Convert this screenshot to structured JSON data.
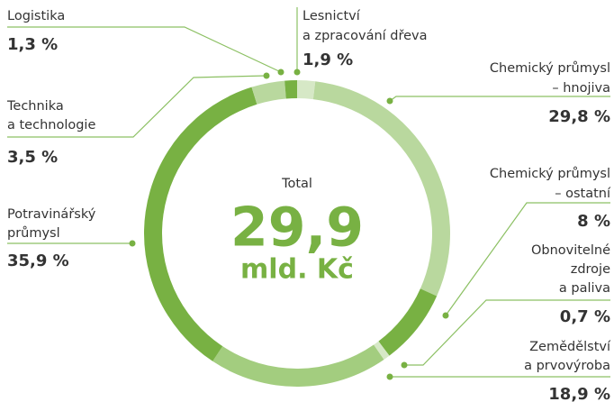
{
  "chart_data": {
    "type": "donut",
    "categories": [
      [
        "Lesnictví",
        "a zpracování dřeva"
      ],
      [
        "Chemický průmysl",
        "– hnojiva"
      ],
      [
        "Chemický průmysl",
        "– ostatní"
      ],
      [
        "Obnovitelné",
        "zdroje",
        "a paliva"
      ],
      [
        "Zemědělství",
        "a prvovýroba"
      ],
      [
        "Potravinářský",
        "průmysl"
      ],
      [
        "Technika",
        "a technologie"
      ],
      [
        "Logistika"
      ]
    ],
    "values": [
      1.9,
      29.8,
      8,
      0.7,
      18.9,
      35.9,
      3.5,
      1.3
    ],
    "value_labels": [
      "1,9 %",
      "29,8 %",
      "8 %",
      "0,7 %",
      "18,9 %",
      "35,9 %",
      "3,5 %",
      "1,3 %"
    ],
    "colors": [
      "#d6e8c6",
      "#b9d89e",
      "#78b143",
      "#d6e8c6",
      "#a3cd7f",
      "#78b143",
      "#b9d89e",
      "#78b143"
    ],
    "center": {
      "title": "Total",
      "value": 29.9,
      "value_label": "29,9",
      "unit": "mld. Kč"
    }
  }
}
